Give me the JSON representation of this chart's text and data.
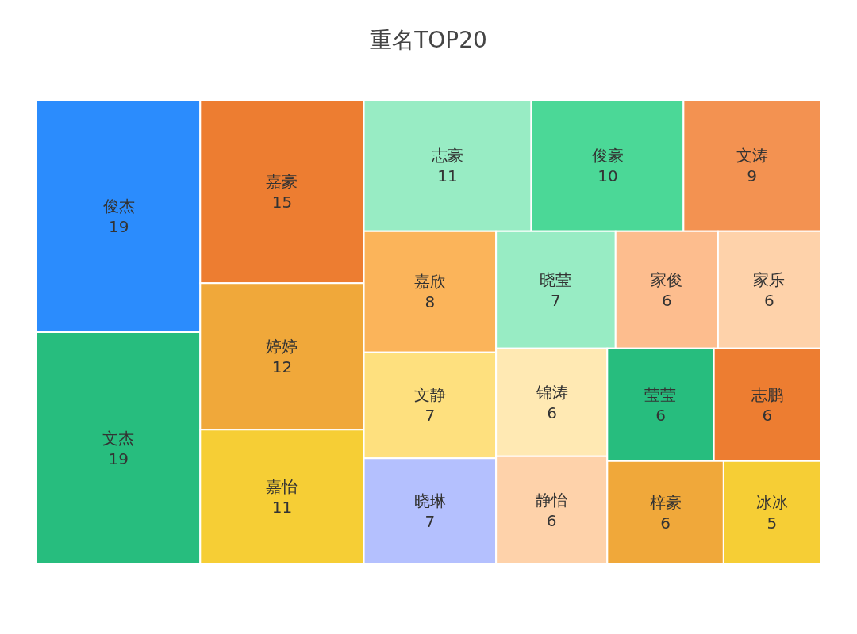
{
  "chart_data": {
    "type": "other",
    "title": "重名TOP20",
    "categories": [
      "俊杰",
      "文杰",
      "嘉豪",
      "婷婷",
      "嘉怡",
      "志豪",
      "俊豪",
      "文涛",
      "嘉欣",
      "文静",
      "晓琳",
      "晓莹",
      "家俊",
      "家乐",
      "锦涛",
      "静怡",
      "莹莹",
      "志鹏",
      "梓豪",
      "冰冰"
    ],
    "values": [
      19,
      19,
      15,
      12,
      11,
      11,
      10,
      9,
      8,
      7,
      7,
      7,
      6,
      6,
      6,
      6,
      6,
      6,
      6,
      5
    ],
    "colors": [
      "#2b8cfd",
      "#27bd7e",
      "#ed7d31",
      "#f0a83a",
      "#f6ce35",
      "#98ecc4",
      "#4bd897",
      "#f39251",
      "#fbb45a",
      "#fee07e",
      "#b4c0fe",
      "#98ecc4",
      "#fdbd8e",
      "#fed2aa",
      "#ffe9b3",
      "#fed2aa",
      "#27bd7e",
      "#ed7d31",
      "#f0a83a",
      "#f6ce35"
    ],
    "data_labels": true
  }
}
